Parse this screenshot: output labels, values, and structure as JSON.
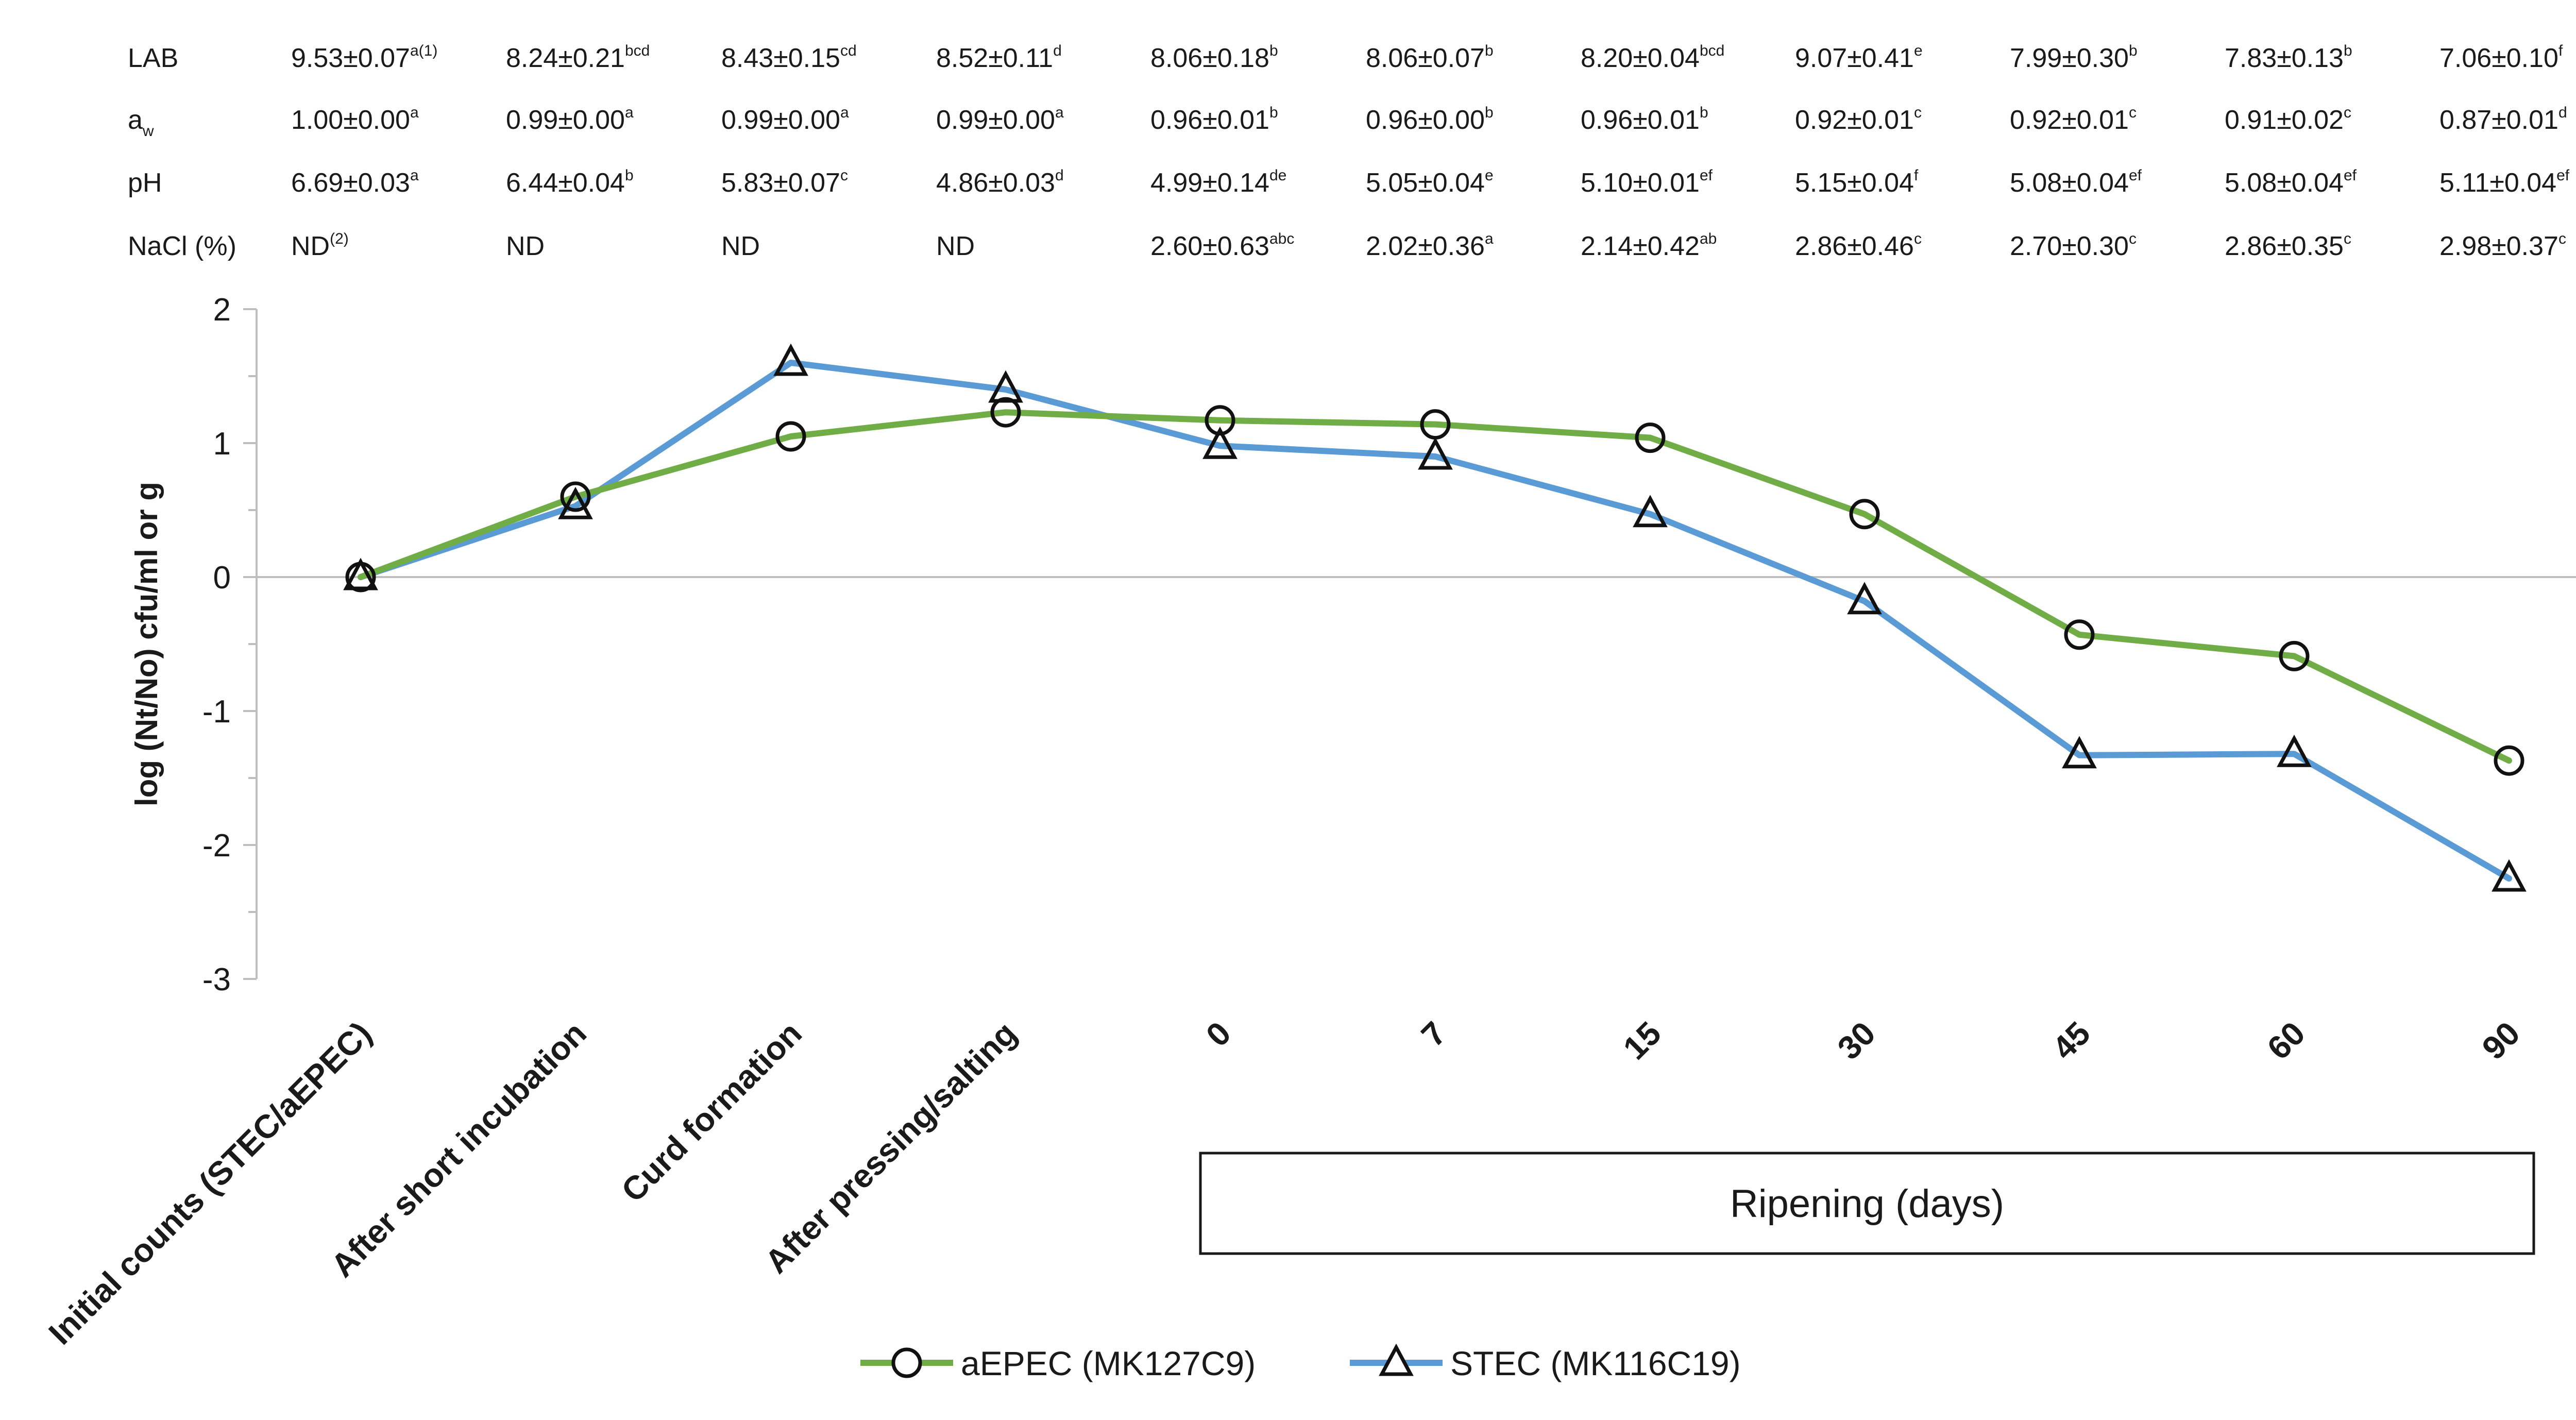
{
  "chart_data": {
    "type": "line",
    "ylabel": "log (Nt/No) cfu/ml or g",
    "ylim": [
      -3,
      2
    ],
    "yticks": [
      "2",
      "1",
      "0",
      "-1",
      "-2",
      "-3"
    ],
    "ytick_values": [
      2,
      1,
      0,
      -1,
      -2,
      -3
    ],
    "categories": [
      "Initial counts (STEC/aEPEC)",
      "After short incubation",
      "Curd formation",
      "After pressing/salting",
      "0",
      "7",
      "15",
      "30",
      "45",
      "60",
      "90"
    ],
    "ripening_label": "Ripening (days)",
    "series": [
      {
        "name": "aEPEC (MK127C9)",
        "color": "#70ad47",
        "marker": "circle",
        "values": [
          0.0,
          0.6,
          1.05,
          1.23,
          1.17,
          1.14,
          1.04,
          0.47,
          -0.43,
          -0.59,
          -1.37
        ]
      },
      {
        "name": "STEC (MK116C19)",
        "color": "#5b9bd5",
        "marker": "triangle",
        "values": [
          0.0,
          0.53,
          1.6,
          1.4,
          0.98,
          0.9,
          0.47,
          -0.18,
          -1.33,
          -1.32,
          -2.25
        ]
      }
    ],
    "table": {
      "rows": [
        {
          "label": "LAB",
          "label_sub": "",
          "cells": [
            [
              "9.53±0.07",
              "a(1)"
            ],
            [
              "8.24±0.21",
              "bcd"
            ],
            [
              "8.43±0.15",
              "cd"
            ],
            [
              "8.52±0.11",
              "d"
            ],
            [
              "8.06±0.18",
              "b"
            ],
            [
              "8.06±0.07",
              "b"
            ],
            [
              "8.20±0.04",
              "bcd"
            ],
            [
              "9.07±0.41",
              "e"
            ],
            [
              "7.99±0.30",
              "b"
            ],
            [
              "7.83±0.13",
              "b"
            ],
            [
              "7.06±0.10",
              "f"
            ]
          ]
        },
        {
          "label": "a",
          "label_sub": "w",
          "cells": [
            [
              "1.00±0.00",
              "a"
            ],
            [
              "0.99±0.00",
              "a"
            ],
            [
              "0.99±0.00",
              "a"
            ],
            [
              "0.99±0.00",
              "a"
            ],
            [
              "0.96±0.01",
              "b"
            ],
            [
              "0.96±0.00",
              "b"
            ],
            [
              "0.96±0.01",
              "b"
            ],
            [
              "0.92±0.01",
              "c"
            ],
            [
              "0.92±0.01",
              "c"
            ],
            [
              "0.91±0.02",
              "c"
            ],
            [
              "0.87±0.01",
              "d"
            ]
          ]
        },
        {
          "label": "pH",
          "label_sub": "",
          "cells": [
            [
              "6.69±0.03",
              "a"
            ],
            [
              "6.44±0.04",
              "b"
            ],
            [
              "5.83±0.07",
              "c"
            ],
            [
              "4.86±0.03",
              "d"
            ],
            [
              "4.99±0.14",
              "de"
            ],
            [
              "5.05±0.04",
              "e"
            ],
            [
              "5.10±0.01",
              "ef"
            ],
            [
              "5.15±0.04",
              "f"
            ],
            [
              "5.08±0.04",
              "ef"
            ],
            [
              "5.08±0.04",
              "ef"
            ],
            [
              "5.11±0.04",
              "ef"
            ]
          ]
        },
        {
          "label": "NaCl (%)",
          "label_sub": "",
          "cells": [
            [
              "ND",
              "(2)"
            ],
            [
              "ND",
              ""
            ],
            [
              "ND",
              ""
            ],
            [
              "ND",
              ""
            ],
            [
              "2.60±0.63",
              "abc"
            ],
            [
              "2.02±0.36",
              "a"
            ],
            [
              "2.14±0.42",
              "ab"
            ],
            [
              "2.86±0.46",
              "c"
            ],
            [
              "2.70±0.30",
              "c"
            ],
            [
              "2.86±0.35",
              "c"
            ],
            [
              "2.98±0.37",
              "c"
            ]
          ]
        }
      ]
    }
  }
}
